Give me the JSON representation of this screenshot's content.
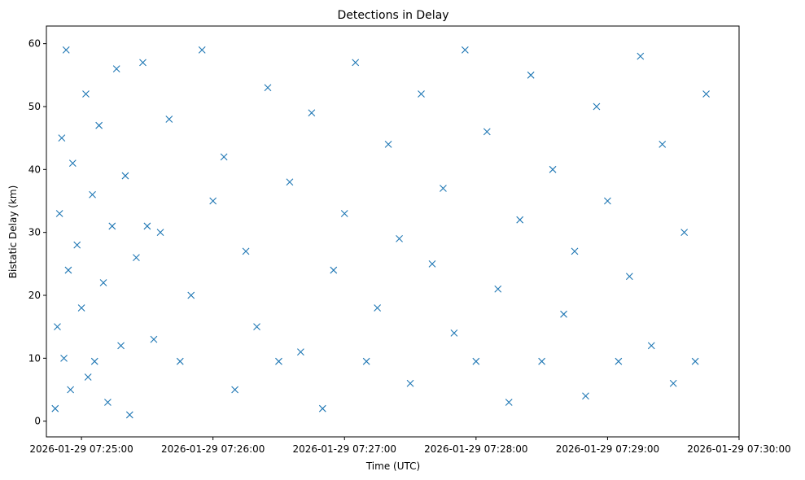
{
  "chart_data": {
    "type": "scatter",
    "title": "Detections in Delay",
    "xlabel": "Time (UTC)",
    "ylabel": "Bistatic Delay (km)",
    "xlim": [
      "2026-01-29 07:24:44",
      "2026-01-29 07:30:00"
    ],
    "ylim": [
      -2.5,
      62.8
    ],
    "x_ticks": [
      "2026-01-29 07:25:00",
      "2026-01-29 07:26:00",
      "2026-01-29 07:27:00",
      "2026-01-29 07:28:00",
      "2026-01-29 07:29:00",
      "2026-01-29 07:30:00"
    ],
    "y_ticks": [
      0,
      10,
      20,
      30,
      40,
      50,
      60
    ],
    "marker": "x",
    "color": "#1f77b4",
    "grid": false,
    "series": [
      {
        "x": [
          "2026-01-29 07:24:48",
          "2026-01-29 07:24:49",
          "2026-01-29 07:24:50",
          "2026-01-29 07:24:51",
          "2026-01-29 07:24:52",
          "2026-01-29 07:24:53",
          "2026-01-29 07:24:54",
          "2026-01-29 07:24:55",
          "2026-01-29 07:24:56",
          "2026-01-29 07:24:58",
          "2026-01-29 07:25:00",
          "2026-01-29 07:25:02",
          "2026-01-29 07:25:03",
          "2026-01-29 07:25:05",
          "2026-01-29 07:25:06",
          "2026-01-29 07:25:08",
          "2026-01-29 07:25:10",
          "2026-01-29 07:25:12",
          "2026-01-29 07:25:14",
          "2026-01-29 07:25:16",
          "2026-01-29 07:25:18",
          "2026-01-29 07:25:20",
          "2026-01-29 07:25:22",
          "2026-01-29 07:25:25",
          "2026-01-29 07:25:28",
          "2026-01-29 07:25:30",
          "2026-01-29 07:25:33",
          "2026-01-29 07:25:36",
          "2026-01-29 07:25:40",
          "2026-01-29 07:25:45",
          "2026-01-29 07:25:50",
          "2026-01-29 07:25:55",
          "2026-01-29 07:26:00",
          "2026-01-29 07:26:05",
          "2026-01-29 07:26:10",
          "2026-01-29 07:26:15",
          "2026-01-29 07:26:20",
          "2026-01-29 07:26:25",
          "2026-01-29 07:26:30",
          "2026-01-29 07:26:35",
          "2026-01-29 07:26:40",
          "2026-01-29 07:26:45",
          "2026-01-29 07:26:50",
          "2026-01-29 07:26:55",
          "2026-01-29 07:27:00",
          "2026-01-29 07:27:05",
          "2026-01-29 07:27:10",
          "2026-01-29 07:27:15",
          "2026-01-29 07:27:20",
          "2026-01-29 07:27:25",
          "2026-01-29 07:27:30",
          "2026-01-29 07:27:35",
          "2026-01-29 07:27:40",
          "2026-01-29 07:27:45",
          "2026-01-29 07:27:50",
          "2026-01-29 07:27:55",
          "2026-01-29 07:28:00",
          "2026-01-29 07:28:05",
          "2026-01-29 07:28:10",
          "2026-01-29 07:28:15",
          "2026-01-29 07:28:20",
          "2026-01-29 07:28:25",
          "2026-01-29 07:28:30",
          "2026-01-29 07:28:35",
          "2026-01-29 07:28:40",
          "2026-01-29 07:28:45",
          "2026-01-29 07:28:50",
          "2026-01-29 07:28:55",
          "2026-01-29 07:29:00",
          "2026-01-29 07:29:05",
          "2026-01-29 07:29:10",
          "2026-01-29 07:29:15",
          "2026-01-29 07:29:20",
          "2026-01-29 07:29:25",
          "2026-01-29 07:29:30",
          "2026-01-29 07:29:35",
          "2026-01-29 07:29:40",
          "2026-01-29 07:29:45"
        ],
        "y": [
          2,
          15,
          33,
          45,
          10,
          59,
          24,
          5,
          41,
          28,
          18,
          52,
          7,
          36,
          9.5,
          47,
          22,
          3,
          31,
          56,
          12,
          39,
          1,
          26,
          57,
          31,
          13,
          30,
          48,
          9.5,
          20,
          59,
          35,
          42,
          5,
          27,
          15,
          53,
          9.5,
          38,
          11,
          49,
          2,
          24,
          33,
          57,
          9.5,
          18,
          44,
          29,
          6,
          52,
          25,
          37,
          14,
          59,
          9.5,
          46,
          21,
          3,
          32,
          55,
          9.5,
          40,
          17,
          27,
          4,
          50,
          35,
          9.5,
          23,
          58,
          12,
          44,
          6,
          30,
          9.5,
          52
        ]
      }
    ]
  }
}
